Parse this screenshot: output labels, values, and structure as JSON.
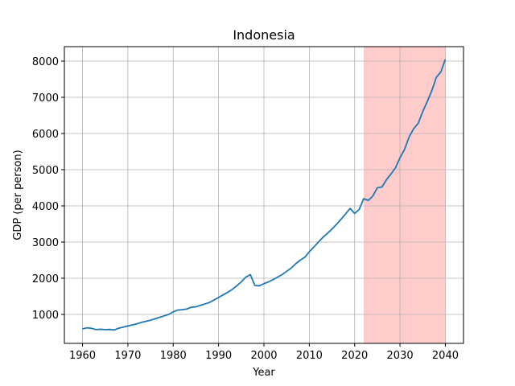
{
  "chart_data": {
    "type": "line",
    "title": "Indonesia",
    "xlabel": "Year",
    "ylabel": "GDP (per person)",
    "xlim": [
      1956,
      2044
    ],
    "ylim": [
      200,
      8400
    ],
    "grid": true,
    "x_ticks": [
      1960,
      1970,
      1980,
      1990,
      2000,
      2010,
      2020,
      2030,
      2040
    ],
    "y_ticks": [
      1000,
      2000,
      3000,
      4000,
      5000,
      6000,
      7000,
      8000
    ],
    "shaded_region": {
      "x_start": 2022,
      "x_end": 2040,
      "color": "#ffcccc"
    },
    "series": [
      {
        "color": "#1f77b4",
        "points": [
          [
            1960,
            600
          ],
          [
            1961,
            630
          ],
          [
            1962,
            615
          ],
          [
            1963,
            580
          ],
          [
            1964,
            590
          ],
          [
            1965,
            580
          ],
          [
            1966,
            585
          ],
          [
            1967,
            570
          ],
          [
            1968,
            620
          ],
          [
            1969,
            650
          ],
          [
            1970,
            680
          ],
          [
            1971,
            710
          ],
          [
            1972,
            740
          ],
          [
            1973,
            780
          ],
          [
            1974,
            810
          ],
          [
            1975,
            840
          ],
          [
            1976,
            880
          ],
          [
            1977,
            920
          ],
          [
            1978,
            960
          ],
          [
            1979,
            1000
          ],
          [
            1980,
            1070
          ],
          [
            1981,
            1120
          ],
          [
            1982,
            1130
          ],
          [
            1983,
            1150
          ],
          [
            1984,
            1200
          ],
          [
            1985,
            1210
          ],
          [
            1986,
            1250
          ],
          [
            1987,
            1290
          ],
          [
            1988,
            1330
          ],
          [
            1989,
            1400
          ],
          [
            1990,
            1470
          ],
          [
            1991,
            1540
          ],
          [
            1992,
            1610
          ],
          [
            1993,
            1690
          ],
          [
            1994,
            1790
          ],
          [
            1995,
            1900
          ],
          [
            1996,
            2030
          ],
          [
            1997,
            2100
          ],
          [
            1998,
            1800
          ],
          [
            1999,
            1790
          ],
          [
            2000,
            1850
          ],
          [
            2001,
            1900
          ],
          [
            2002,
            1960
          ],
          [
            2003,
            2030
          ],
          [
            2004,
            2100
          ],
          [
            2005,
            2190
          ],
          [
            2006,
            2280
          ],
          [
            2007,
            2400
          ],
          [
            2008,
            2500
          ],
          [
            2009,
            2580
          ],
          [
            2010,
            2730
          ],
          [
            2011,
            2860
          ],
          [
            2012,
            3000
          ],
          [
            2013,
            3130
          ],
          [
            2014,
            3240
          ],
          [
            2015,
            3360
          ],
          [
            2016,
            3490
          ],
          [
            2017,
            3630
          ],
          [
            2018,
            3780
          ],
          [
            2019,
            3930
          ],
          [
            2020,
            3790
          ],
          [
            2021,
            3900
          ],
          [
            2022,
            4200
          ],
          [
            2023,
            4150
          ],
          [
            2024,
            4270
          ],
          [
            2025,
            4500
          ],
          [
            2026,
            4520
          ],
          [
            2027,
            4720
          ],
          [
            2028,
            4880
          ],
          [
            2029,
            5050
          ],
          [
            2030,
            5330
          ],
          [
            2031,
            5560
          ],
          [
            2032,
            5900
          ],
          [
            2033,
            6130
          ],
          [
            2034,
            6280
          ],
          [
            2035,
            6600
          ],
          [
            2036,
            6880
          ],
          [
            2037,
            7180
          ],
          [
            2038,
            7550
          ],
          [
            2039,
            7700
          ],
          [
            2040,
            8050
          ]
        ]
      }
    ]
  }
}
